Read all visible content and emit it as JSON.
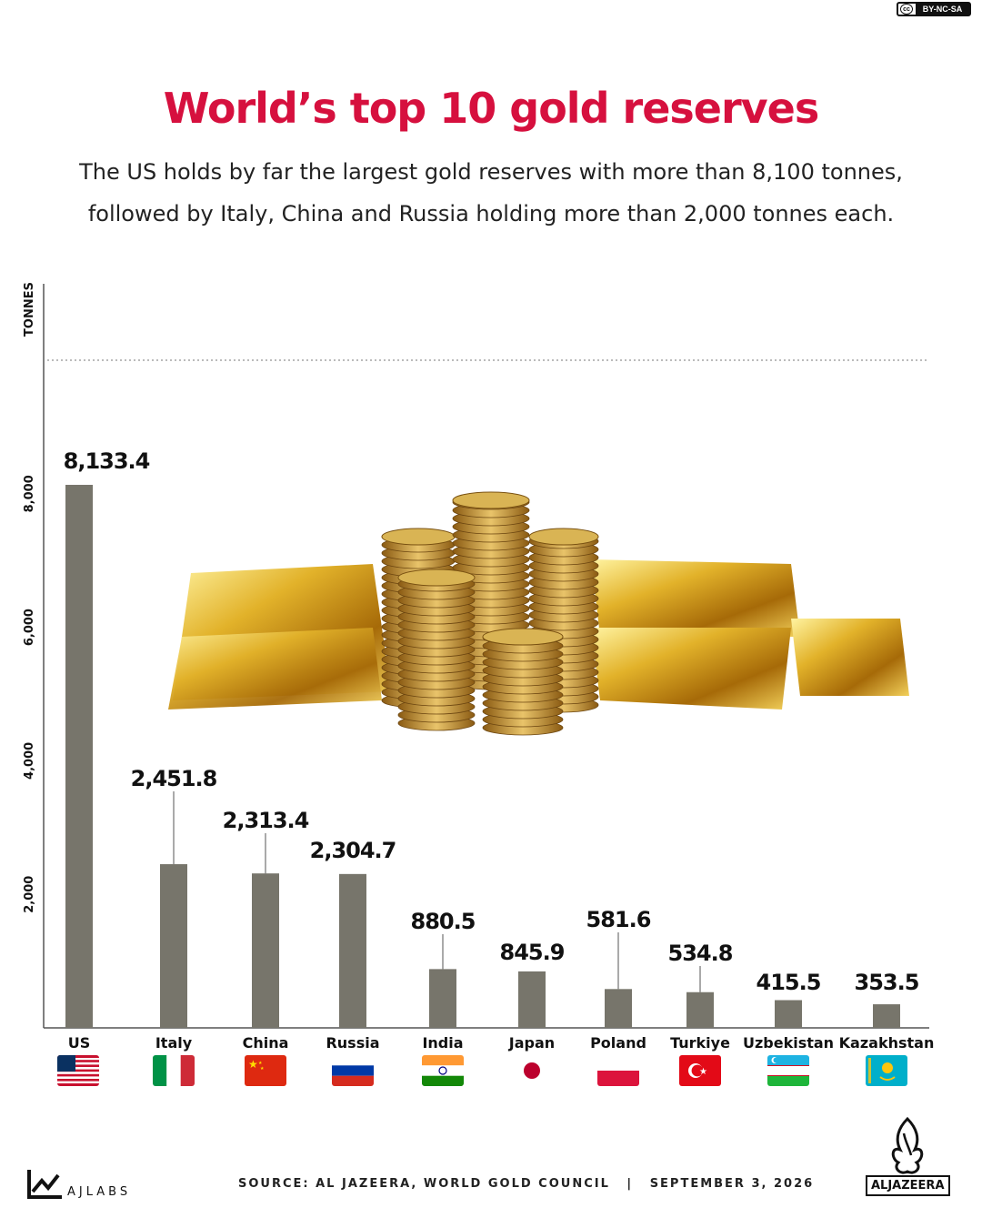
{
  "license": {
    "badge": "cc",
    "text": "BY-NC-SA"
  },
  "header": {
    "title": "World’s top 10 gold reserves",
    "subtitle_line1": "The US holds by far the largest gold reserves with more than 8,100 tonnes,",
    "subtitle_line2": "followed by Italy, China and Russia holding more than 2,000 tonnes each."
  },
  "chart_data": {
    "type": "bar",
    "title": "World’s top 10 gold reserves",
    "ylabel": "TONNES",
    "ylim": [
      0,
      10000
    ],
    "yticks": [
      2000,
      4000,
      6000,
      8000
    ],
    "ytick_labels": [
      "2,000",
      "4,000",
      "6,000",
      "8,000"
    ],
    "grid": "dotted line at 10,000",
    "categories": [
      "US",
      "Italy",
      "China",
      "Russia",
      "India",
      "Japan",
      "Poland",
      "Turkiye",
      "Uzbekistan",
      "Kazakhstan"
    ],
    "values": [
      8133.4,
      2451.8,
      2313.4,
      2304.7,
      880.5,
      845.9,
      581.6,
      534.8,
      415.5,
      353.5
    ],
    "value_labels": [
      "8,133.4",
      "2,451.8",
      "2,313.4",
      "2,304.7",
      "880.5",
      "845.9",
      "581.6",
      "534.8",
      "415.5",
      "353.5"
    ],
    "bar_color": "#77756b",
    "flag_icons": [
      "flag-us-icon",
      "flag-italy-icon",
      "flag-china-icon",
      "flag-russia-icon",
      "flag-india-icon",
      "flag-japan-icon",
      "flag-poland-icon",
      "flag-turkiye-icon",
      "flag-uzbekistan-icon",
      "flag-kazakhstan-icon"
    ]
  },
  "illustration": {
    "icon": "gold-bars-and-coins-icon"
  },
  "footer": {
    "brand": "AJLABS",
    "source": "SOURCE: AL JAZEERA, WORLD GOLD COUNCIL",
    "separator": "|",
    "date": "SEPTEMBER 3, 2026",
    "publisher": "ALJAZEERA"
  },
  "colors": {
    "title": "#d6103e",
    "bar": "#77756b",
    "text": "#111111"
  }
}
